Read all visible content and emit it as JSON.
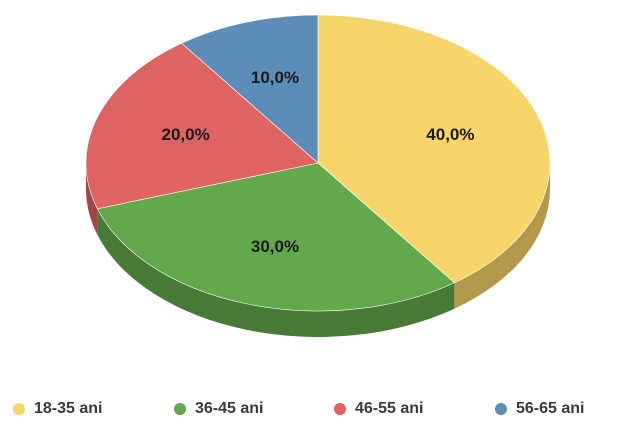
{
  "chart_data": {
    "type": "pie",
    "style": "3d",
    "categories": [
      "18-35 ani",
      "36-45 ani",
      "46-55 ani",
      "56-65 ani"
    ],
    "values": [
      40.0,
      30.0,
      20.0,
      10.0
    ],
    "data_labels": [
      "40,0%",
      "30,0%",
      "20,0%",
      "10,0%"
    ],
    "colors": [
      "#F7D56A",
      "#64A84C",
      "#E06363",
      "#5B8DB8"
    ],
    "title": "",
    "legend": {
      "position": "bottom",
      "entries": [
        "18-35 ani",
        "36-45 ani",
        "46-55 ani",
        "56-65 ani"
      ]
    }
  }
}
